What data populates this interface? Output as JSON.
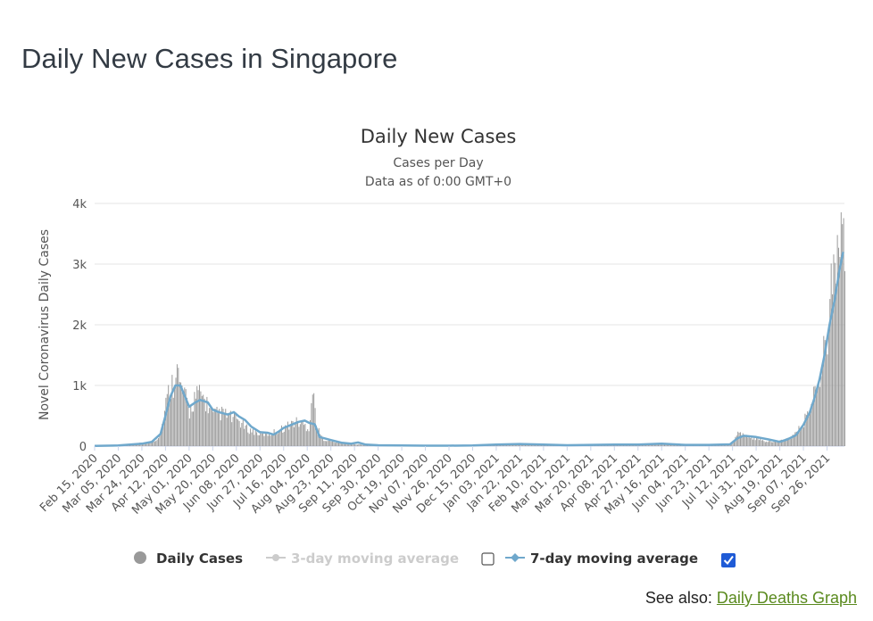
{
  "page": {
    "title": "Daily New Cases in Singapore",
    "see_also_label": "See also: ",
    "see_also_link": "Daily Deaths Graph"
  },
  "colors": {
    "bars": "#999999",
    "line7": "#6fa8cc",
    "line3_disabled": "#cccccc",
    "grid": "#e6e6e6",
    "link": "#5a8a1e"
  },
  "legend": {
    "daily": "Daily Cases",
    "avg3": "3-day moving average",
    "avg3_checked": false,
    "avg7": "7-day moving average",
    "avg7_checked": true
  },
  "chart_data": {
    "type": "bar",
    "title": "Daily New Cases",
    "subtitle1": "Cases per Day",
    "subtitle2": "Data as of 0:00 GMT+0",
    "ylabel": "Novel Coronavirus Daily Cases",
    "ylim": [
      0,
      4000
    ],
    "yticks": [
      {
        "value": 0,
        "label": "0"
      },
      {
        "value": 1000,
        "label": "1k"
      },
      {
        "value": 2000,
        "label": "2k"
      },
      {
        "value": 3000,
        "label": "3k"
      },
      {
        "value": 4000,
        "label": "4k"
      }
    ],
    "x_start": "2020-02-15",
    "x_end": "2021-10-10",
    "xtick_labels": [
      "Feb 15, 2020",
      "Mar 05, 2020",
      "Mar 24, 2020",
      "Apr 12, 2020",
      "May 01, 2020",
      "May 20, 2020",
      "Jun 08, 2020",
      "Jun 27, 2020",
      "Jul 16, 2020",
      "Aug 04, 2020",
      "Aug 23, 2020",
      "Sep 11, 2020",
      "Sep 30, 2020",
      "Oct 19, 2020",
      "Nov 07, 2020",
      "Nov 26, 2020",
      "Dec 15, 2020",
      "Jan 03, 2021",
      "Jan 22, 2021",
      "Feb 10, 2021",
      "Mar 01, 2021",
      "Mar 20, 2021",
      "Apr 08, 2021",
      "Apr 27, 2021",
      "May 16, 2021",
      "Jun 04, 2021",
      "Jun 23, 2021",
      "Jul 12, 2021",
      "Jul 31, 2021",
      "Aug 19, 2021",
      "Sep 07, 2021",
      "Sep 26, 2021"
    ],
    "series": [
      {
        "name": "Daily Cases",
        "kind": "bar",
        "points": [
          [
            "2020-02-15",
            2
          ],
          [
            "2020-03-05",
            10
          ],
          [
            "2020-03-24",
            50
          ],
          [
            "2020-04-01",
            70
          ],
          [
            "2020-04-05",
            120
          ],
          [
            "2020-04-08",
            250
          ],
          [
            "2020-04-10",
            450
          ],
          [
            "2020-04-12",
            700
          ],
          [
            "2020-04-15",
            950
          ],
          [
            "2020-04-18",
            1050
          ],
          [
            "2020-04-20",
            1430
          ],
          [
            "2020-04-23",
            1000
          ],
          [
            "2020-04-26",
            900
          ],
          [
            "2020-05-01",
            550
          ],
          [
            "2020-05-05",
            800
          ],
          [
            "2020-05-10",
            850
          ],
          [
            "2020-05-15",
            700
          ],
          [
            "2020-05-20",
            500
          ],
          [
            "2020-05-25",
            550
          ],
          [
            "2020-06-01",
            500
          ],
          [
            "2020-06-05",
            450
          ],
          [
            "2020-06-08",
            450
          ],
          [
            "2020-06-15",
            300
          ],
          [
            "2020-06-20",
            250
          ],
          [
            "2020-06-27",
            200
          ],
          [
            "2020-07-05",
            200
          ],
          [
            "2020-07-10",
            250
          ],
          [
            "2020-07-16",
            300
          ],
          [
            "2020-07-20",
            350
          ],
          [
            "2020-07-25",
            400
          ],
          [
            "2020-08-01",
            350
          ],
          [
            "2020-08-05",
            300
          ],
          [
            "2020-08-08",
            910
          ],
          [
            "2020-08-12",
            280
          ],
          [
            "2020-08-16",
            120
          ],
          [
            "2020-08-23",
            80
          ],
          [
            "2020-09-01",
            50
          ],
          [
            "2020-09-11",
            30
          ],
          [
            "2020-09-20",
            20
          ],
          [
            "2020-09-30",
            12
          ],
          [
            "2020-10-19",
            8
          ],
          [
            "2020-11-07",
            8
          ],
          [
            "2020-11-26",
            8
          ],
          [
            "2020-12-15",
            12
          ],
          [
            "2021-01-03",
            25
          ],
          [
            "2021-01-22",
            30
          ],
          [
            "2021-02-10",
            25
          ],
          [
            "2021-03-01",
            15
          ],
          [
            "2021-03-20",
            20
          ],
          [
            "2021-04-08",
            25
          ],
          [
            "2021-04-27",
            25
          ],
          [
            "2021-05-16",
            40
          ],
          [
            "2021-06-04",
            20
          ],
          [
            "2021-06-23",
            20
          ],
          [
            "2021-07-10",
            30
          ],
          [
            "2021-07-16",
            200
          ],
          [
            "2021-07-20",
            180
          ],
          [
            "2021-07-31",
            120
          ],
          [
            "2021-08-10",
            70
          ],
          [
            "2021-08-19",
            80
          ],
          [
            "2021-08-25",
            130
          ],
          [
            "2021-09-01",
            200
          ],
          [
            "2021-09-07",
            400
          ],
          [
            "2021-09-12",
            600
          ],
          [
            "2021-09-16",
            900
          ],
          [
            "2021-09-20",
            1200
          ],
          [
            "2021-09-24",
            1600
          ],
          [
            "2021-09-27",
            2200
          ],
          [
            "2021-09-30",
            2900
          ],
          [
            "2021-10-03",
            2300
          ],
          [
            "2021-10-05",
            3500
          ],
          [
            "2021-10-07",
            3550
          ],
          [
            "2021-10-08",
            3600
          ],
          [
            "2021-10-09",
            3650
          ]
        ]
      },
      {
        "name": "7-day moving average",
        "kind": "line",
        "points": [
          [
            "2020-02-15",
            5
          ],
          [
            "2020-03-05",
            10
          ],
          [
            "2020-03-24",
            40
          ],
          [
            "2020-04-01",
            70
          ],
          [
            "2020-04-08",
            200
          ],
          [
            "2020-04-12",
            500
          ],
          [
            "2020-04-16",
            820
          ],
          [
            "2020-04-20",
            1000
          ],
          [
            "2020-04-24",
            1000
          ],
          [
            "2020-04-28",
            800
          ],
          [
            "2020-05-01",
            650
          ],
          [
            "2020-05-06",
            720
          ],
          [
            "2020-05-10",
            760
          ],
          [
            "2020-05-16",
            720
          ],
          [
            "2020-05-20",
            600
          ],
          [
            "2020-05-25",
            560
          ],
          [
            "2020-06-01",
            520
          ],
          [
            "2020-06-06",
            560
          ],
          [
            "2020-06-10",
            490
          ],
          [
            "2020-06-15",
            430
          ],
          [
            "2020-06-20",
            320
          ],
          [
            "2020-06-27",
            230
          ],
          [
            "2020-07-03",
            220
          ],
          [
            "2020-07-08",
            190
          ],
          [
            "2020-07-12",
            240
          ],
          [
            "2020-07-16",
            300
          ],
          [
            "2020-07-22",
            350
          ],
          [
            "2020-07-28",
            400
          ],
          [
            "2020-08-02",
            420
          ],
          [
            "2020-08-06",
            380
          ],
          [
            "2020-08-10",
            360
          ],
          [
            "2020-08-14",
            150
          ],
          [
            "2020-08-23",
            100
          ],
          [
            "2020-09-01",
            55
          ],
          [
            "2020-09-08",
            40
          ],
          [
            "2020-09-14",
            60
          ],
          [
            "2020-09-20",
            25
          ],
          [
            "2020-09-30",
            15
          ],
          [
            "2020-10-19",
            10
          ],
          [
            "2020-11-07",
            8
          ],
          [
            "2020-11-26",
            8
          ],
          [
            "2020-12-15",
            12
          ],
          [
            "2021-01-03",
            25
          ],
          [
            "2021-01-22",
            35
          ],
          [
            "2021-02-10",
            25
          ],
          [
            "2021-03-01",
            15
          ],
          [
            "2021-03-20",
            20
          ],
          [
            "2021-04-08",
            25
          ],
          [
            "2021-04-27",
            25
          ],
          [
            "2021-05-16",
            40
          ],
          [
            "2021-06-04",
            20
          ],
          [
            "2021-06-23",
            20
          ],
          [
            "2021-07-10",
            30
          ],
          [
            "2021-07-16",
            130
          ],
          [
            "2021-07-21",
            170
          ],
          [
            "2021-07-31",
            150
          ],
          [
            "2021-08-10",
            110
          ],
          [
            "2021-08-19",
            70
          ],
          [
            "2021-08-25",
            110
          ],
          [
            "2021-09-01",
            180
          ],
          [
            "2021-09-07",
            350
          ],
          [
            "2021-09-12",
            550
          ],
          [
            "2021-09-16",
            800
          ],
          [
            "2021-09-20",
            1100
          ],
          [
            "2021-09-24",
            1500
          ],
          [
            "2021-09-28",
            2000
          ],
          [
            "2021-10-02",
            2400
          ],
          [
            "2021-10-06",
            2900
          ],
          [
            "2021-10-09",
            3200
          ]
        ]
      }
    ],
    "grid": true,
    "legend_position": "bottom"
  }
}
